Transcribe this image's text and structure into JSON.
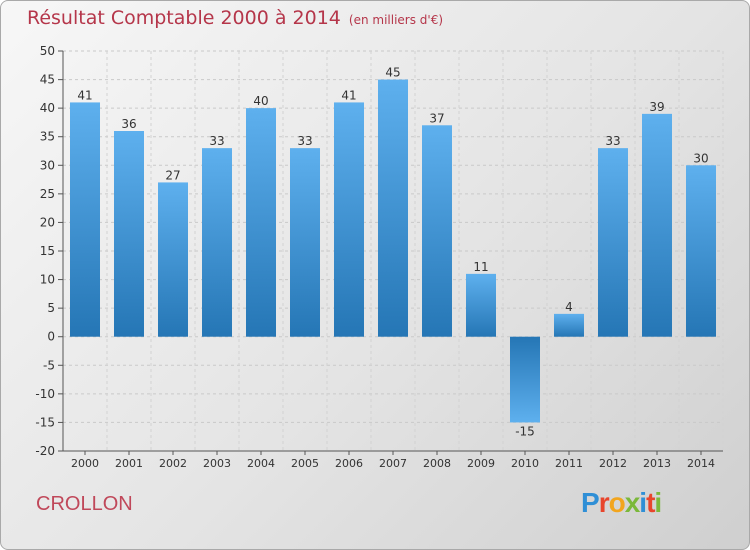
{
  "header": {
    "title": "Résultat Comptable 2000 à 2014",
    "subtitle": "(en milliers d'€)"
  },
  "footer": {
    "place": "CROLLON",
    "brand": "Proxiti"
  },
  "brand_letters": [
    {
      "char": "P",
      "color": "#2f8fd6"
    },
    {
      "char": "r",
      "color": "#e8452c"
    },
    {
      "char": "o",
      "color": "#f2a51e"
    },
    {
      "char": "x",
      "color": "#7bb83a"
    },
    {
      "char": "i",
      "color": "#2f8fd6"
    },
    {
      "char": "t",
      "color": "#e8452c"
    },
    {
      "char": "i",
      "color": "#7bb83a"
    }
  ],
  "chart_data": {
    "type": "bar",
    "title": "Résultat Comptable 2000 à 2014",
    "subtitle": "(en milliers d'€)",
    "categories": [
      "2000",
      "2001",
      "2002",
      "2003",
      "2004",
      "2005",
      "2006",
      "2007",
      "2008",
      "2009",
      "2010",
      "2011",
      "2012",
      "2013",
      "2014"
    ],
    "values": [
      41,
      36,
      27,
      33,
      40,
      33,
      41,
      45,
      37,
      11,
      -15,
      4,
      33,
      39,
      30
    ],
    "ylim": [
      -20,
      50
    ],
    "yticks": [
      50,
      45,
      40,
      35,
      30,
      25,
      20,
      15,
      10,
      5,
      0,
      -5,
      -10,
      -15,
      -20
    ],
    "grid": true,
    "bar_color_light": "#5eb0ee",
    "bar_color_dark": "#2576b5"
  }
}
